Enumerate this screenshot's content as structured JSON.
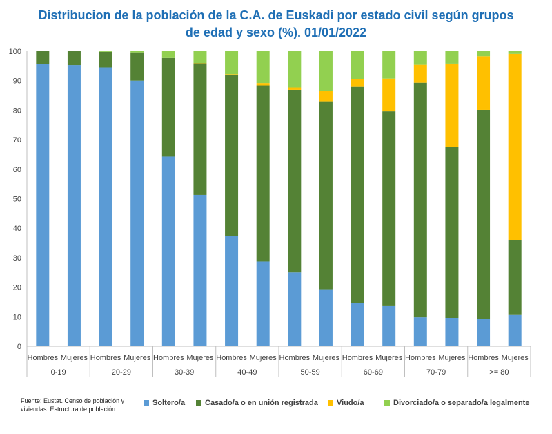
{
  "chart_data": {
    "type": "bar",
    "stacked": true,
    "title_line1": "Distribucion de la población de la C.A. de Euskadi por estado civil según grupos",
    "title_line2": "de edad y sexo (%). 01/01/2022",
    "age_groups": [
      "0-19",
      "20-29",
      "30-39",
      "40-49",
      "50-59",
      "60-69",
      "70-79",
      ">= 80"
    ],
    "sexes": [
      "Hombres",
      "Mujeres"
    ],
    "ylim": [
      0,
      100
    ],
    "yticks": [
      0,
      10,
      20,
      30,
      40,
      50,
      60,
      70,
      80,
      90,
      100
    ],
    "grid": false,
    "legend_position": "bottom",
    "series": [
      {
        "name": "Soltero/a",
        "color": "#5B9BD5",
        "values": [
          95.7,
          95.3,
          94.5,
          90.0,
          64.3,
          51.3,
          37.3,
          28.7,
          25.0,
          19.3,
          14.7,
          13.6,
          9.8,
          9.6,
          9.3,
          10.6
        ]
      },
      {
        "name": "Casado/a o en unión registrada",
        "color": "#548235",
        "values": [
          4.3,
          4.7,
          5.3,
          9.6,
          33.4,
          44.6,
          54.6,
          59.7,
          61.9,
          63.7,
          73.2,
          66.0,
          79.5,
          58.0,
          70.8,
          25.3
        ]
      },
      {
        "name": "Viudo/a",
        "color": "#FFC000",
        "values": [
          0.0,
          0.0,
          0.0,
          0.0,
          0.0,
          0.1,
          0.3,
          0.8,
          0.8,
          3.5,
          2.5,
          11.1,
          6.1,
          28.2,
          18.2,
          63.2
        ]
      },
      {
        "name": "Divorciado/a o separado/a legalmente",
        "color": "#92D050",
        "values": [
          0.0,
          0.0,
          0.2,
          0.4,
          2.3,
          4.0,
          7.8,
          10.8,
          12.3,
          13.5,
          9.6,
          9.3,
          4.6,
          4.2,
          1.7,
          0.9
        ]
      }
    ]
  },
  "source": "Fuente: Eustat. Censo de población y viviendas. Estructura de población"
}
